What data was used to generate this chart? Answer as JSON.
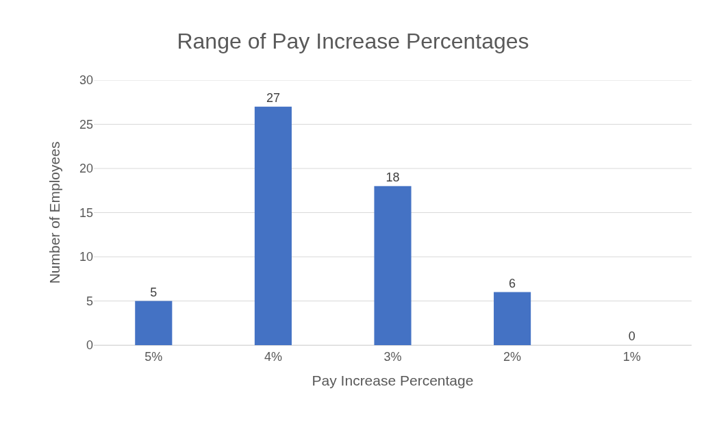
{
  "chart_data": {
    "type": "bar",
    "title": "Range of Pay Increase Percentages",
    "xlabel": "Pay Increase Percentage",
    "ylabel": "Number of Employees",
    "categories": [
      "5%",
      "4%",
      "3%",
      "2%",
      "1%"
    ],
    "values": [
      5,
      27,
      18,
      6,
      0
    ],
    "color": "#4472c4",
    "ylim": [
      0,
      30
    ],
    "yticks": [
      0,
      5,
      10,
      15,
      20,
      25,
      30
    ],
    "grid": "y",
    "data_labels": true
  }
}
